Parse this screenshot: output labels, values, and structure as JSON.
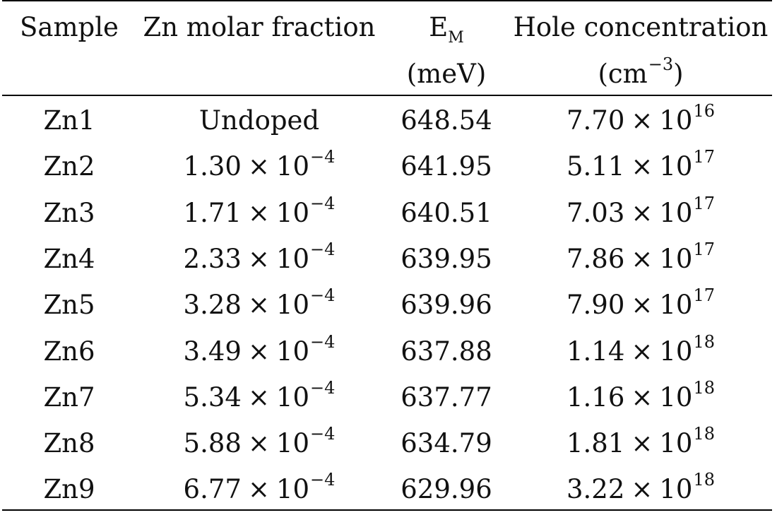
{
  "table": {
    "headers": {
      "sample": "Sample",
      "zn_fraction": "Zn molar fraction",
      "em_main": "E",
      "em_sub": "M",
      "em_unit": "(meV)",
      "hole_title": "Hole concentration",
      "hole_unit_open": "(cm",
      "hole_unit_exp": "−3",
      "hole_unit_close": ")"
    },
    "times_sign": "×",
    "rows": [
      {
        "sample": "Zn1",
        "zn_text": "Undoped",
        "zn_mantissa": "",
        "zn_base": "",
        "zn_exp": "",
        "em": "648.54",
        "hole_mantissa": "7.70",
        "hole_base": "10",
        "hole_exp": "16"
      },
      {
        "sample": "Zn2",
        "zn_text": "",
        "zn_mantissa": "1.30",
        "zn_base": "10",
        "zn_exp": "−4",
        "em": "641.95",
        "hole_mantissa": "5.11",
        "hole_base": "10",
        "hole_exp": "17"
      },
      {
        "sample": "Zn3",
        "zn_text": "",
        "zn_mantissa": "1.71",
        "zn_base": "10",
        "zn_exp": "−4",
        "em": "640.51",
        "hole_mantissa": "7.03",
        "hole_base": "10",
        "hole_exp": "17"
      },
      {
        "sample": "Zn4",
        "zn_text": "",
        "zn_mantissa": "2.33",
        "zn_base": "10",
        "zn_exp": "−4",
        "em": "639.95",
        "hole_mantissa": "7.86",
        "hole_base": "10",
        "hole_exp": "17"
      },
      {
        "sample": "Zn5",
        "zn_text": "",
        "zn_mantissa": "3.28",
        "zn_base": "10",
        "zn_exp": "−4",
        "em": "639.96",
        "hole_mantissa": "7.90",
        "hole_base": "10",
        "hole_exp": "17"
      },
      {
        "sample": "Zn6",
        "zn_text": "",
        "zn_mantissa": "3.49",
        "zn_base": "10",
        "zn_exp": "−4",
        "em": "637.88",
        "hole_mantissa": "1.14",
        "hole_base": "10",
        "hole_exp": "18"
      },
      {
        "sample": "Zn7",
        "zn_text": "",
        "zn_mantissa": "5.34",
        "zn_base": "10",
        "zn_exp": "−4",
        "em": "637.77",
        "hole_mantissa": "1.16",
        "hole_base": "10",
        "hole_exp": "18"
      },
      {
        "sample": "Zn8",
        "zn_text": "",
        "zn_mantissa": "5.88",
        "zn_base": "10",
        "zn_exp": "−4",
        "em": "634.79",
        "hole_mantissa": "1.81",
        "hole_base": "10",
        "hole_exp": "18"
      },
      {
        "sample": "Zn9",
        "zn_text": "",
        "zn_mantissa": "6.77",
        "zn_base": "10",
        "zn_exp": "−4",
        "em": "629.96",
        "hole_mantissa": "3.22",
        "hole_base": "10",
        "hole_exp": "18"
      }
    ]
  }
}
